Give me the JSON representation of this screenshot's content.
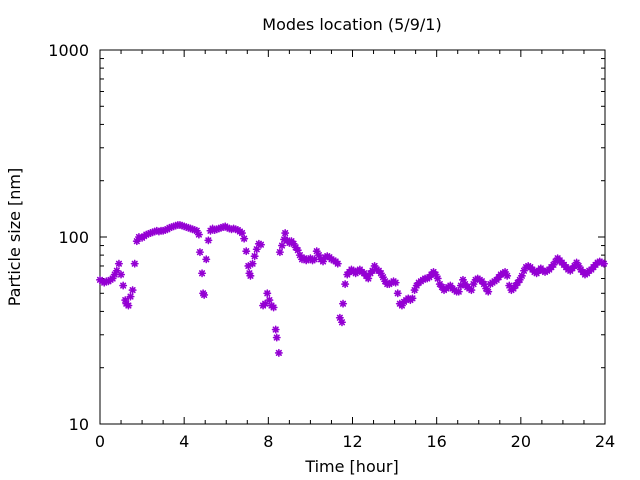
{
  "chart_data": {
    "type": "scatter",
    "title": "Modes location (5/9/1)",
    "xlabel": "Time [hour]",
    "ylabel": "Particle size [nm]",
    "xlim": [
      0,
      24
    ],
    "ylim": [
      10,
      1000
    ],
    "yscale": "log",
    "xticks": [
      0,
      4,
      8,
      12,
      16,
      20,
      24
    ],
    "xtick_labels": [
      "0",
      "4",
      "8",
      "12",
      "16",
      "20",
      "24"
    ],
    "yticks": [
      10,
      100,
      1000
    ],
    "ytick_labels": [
      "10",
      "100",
      "1000"
    ],
    "grid": false,
    "legend": "none",
    "marker": "asterisk",
    "color": "#9400d3",
    "series": [
      {
        "points": [
          [
            0.0,
            59
          ],
          [
            0.1,
            58
          ],
          [
            0.2,
            57
          ],
          [
            0.3,
            58
          ],
          [
            0.4,
            58
          ],
          [
            0.5,
            59
          ],
          [
            0.6,
            60
          ],
          [
            0.7,
            63
          ],
          [
            0.8,
            66
          ],
          [
            0.9,
            72
          ],
          [
            1.0,
            63
          ],
          [
            1.1,
            55
          ],
          [
            1.2,
            46
          ],
          [
            1.25,
            44
          ],
          [
            1.35,
            43
          ],
          [
            1.45,
            48
          ],
          [
            1.55,
            52
          ],
          [
            1.65,
            72
          ],
          [
            1.75,
            95
          ],
          [
            1.85,
            100
          ],
          [
            2.0,
            99
          ],
          [
            2.1,
            101
          ],
          [
            2.2,
            103
          ],
          [
            2.3,
            104
          ],
          [
            2.4,
            105
          ],
          [
            2.5,
            106
          ],
          [
            2.6,
            107
          ],
          [
            2.7,
            108
          ],
          [
            2.8,
            107
          ],
          [
            2.9,
            108
          ],
          [
            3.0,
            108
          ],
          [
            3.1,
            109
          ],
          [
            3.2,
            110
          ],
          [
            3.3,
            112
          ],
          [
            3.4,
            113
          ],
          [
            3.5,
            114
          ],
          [
            3.6,
            115
          ],
          [
            3.7,
            116
          ],
          [
            3.8,
            116
          ],
          [
            3.9,
            115
          ],
          [
            4.0,
            114
          ],
          [
            4.1,
            113
          ],
          [
            4.2,
            112
          ],
          [
            4.3,
            111
          ],
          [
            4.4,
            110
          ],
          [
            4.5,
            109
          ],
          [
            4.6,
            108
          ],
          [
            4.7,
            103
          ],
          [
            4.75,
            83
          ],
          [
            4.85,
            64
          ],
          [
            4.9,
            50
          ],
          [
            4.95,
            49
          ],
          [
            5.05,
            76
          ],
          [
            5.15,
            96
          ],
          [
            5.25,
            108
          ],
          [
            5.35,
            111
          ],
          [
            5.45,
            109
          ],
          [
            5.55,
            110
          ],
          [
            5.65,
            111
          ],
          [
            5.75,
            112
          ],
          [
            5.85,
            113
          ],
          [
            5.95,
            114
          ],
          [
            6.05,
            112
          ],
          [
            6.15,
            111
          ],
          [
            6.25,
            110
          ],
          [
            6.35,
            111
          ],
          [
            6.45,
            110
          ],
          [
            6.55,
            109
          ],
          [
            6.65,
            107
          ],
          [
            6.75,
            105
          ],
          [
            6.85,
            98
          ],
          [
            6.95,
            84
          ],
          [
            7.05,
            70
          ],
          [
            7.1,
            64
          ],
          [
            7.15,
            62
          ],
          [
            7.25,
            72
          ],
          [
            7.35,
            79
          ],
          [
            7.45,
            86
          ],
          [
            7.55,
            92
          ],
          [
            7.65,
            91
          ],
          [
            7.75,
            43
          ],
          [
            7.85,
            44
          ],
          [
            7.95,
            50
          ],
          [
            8.05,
            46
          ],
          [
            8.15,
            43
          ],
          [
            8.25,
            42
          ],
          [
            8.35,
            32
          ],
          [
            8.4,
            29
          ],
          [
            8.5,
            24
          ],
          [
            8.55,
            83
          ],
          [
            8.65,
            90
          ],
          [
            8.75,
            97
          ],
          [
            8.8,
            105
          ],
          [
            8.9,
            96
          ],
          [
            9.0,
            93
          ],
          [
            9.1,
            95
          ],
          [
            9.2,
            92
          ],
          [
            9.3,
            88
          ],
          [
            9.4,
            85
          ],
          [
            9.5,
            80
          ],
          [
            9.6,
            76
          ],
          [
            9.7,
            77
          ],
          [
            9.8,
            75
          ],
          [
            9.9,
            76
          ],
          [
            10.0,
            77
          ],
          [
            10.1,
            75
          ],
          [
            10.2,
            76
          ],
          [
            10.3,
            84
          ],
          [
            10.4,
            80
          ],
          [
            10.5,
            76
          ],
          [
            10.6,
            74
          ],
          [
            10.7,
            78
          ],
          [
            10.8,
            79
          ],
          [
            10.9,
            78
          ],
          [
            11.0,
            76
          ],
          [
            11.1,
            75
          ],
          [
            11.2,
            74
          ],
          [
            11.3,
            72
          ],
          [
            11.4,
            37
          ],
          [
            11.5,
            35
          ],
          [
            11.55,
            44
          ],
          [
            11.65,
            56
          ],
          [
            11.75,
            63
          ],
          [
            11.85,
            65
          ],
          [
            11.95,
            67
          ],
          [
            12.05,
            66
          ],
          [
            12.15,
            64
          ],
          [
            12.25,
            66
          ],
          [
            12.35,
            67
          ],
          [
            12.45,
            65
          ],
          [
            12.55,
            64
          ],
          [
            12.65,
            62
          ],
          [
            12.75,
            60
          ],
          [
            12.85,
            64
          ],
          [
            12.95,
            66
          ],
          [
            13.05,
            70
          ],
          [
            13.15,
            67
          ],
          [
            13.25,
            66
          ],
          [
            13.35,
            64
          ],
          [
            13.45,
            61
          ],
          [
            13.55,
            58
          ],
          [
            13.65,
            56
          ],
          [
            13.75,
            56
          ],
          [
            13.85,
            57
          ],
          [
            13.95,
            58
          ],
          [
            14.05,
            57
          ],
          [
            14.15,
            50
          ],
          [
            14.25,
            44
          ],
          [
            14.35,
            43
          ],
          [
            14.45,
            45
          ],
          [
            14.55,
            46
          ],
          [
            14.65,
            47
          ],
          [
            14.75,
            46
          ],
          [
            14.85,
            47
          ],
          [
            14.95,
            52
          ],
          [
            15.05,
            55
          ],
          [
            15.15,
            57
          ],
          [
            15.25,
            58
          ],
          [
            15.35,
            59
          ],
          [
            15.45,
            60
          ],
          [
            15.55,
            60
          ],
          [
            15.65,
            61
          ],
          [
            15.75,
            63
          ],
          [
            15.85,
            65
          ],
          [
            15.95,
            63
          ],
          [
            16.05,
            60
          ],
          [
            16.15,
            56
          ],
          [
            16.25,
            54
          ],
          [
            16.35,
            52
          ],
          [
            16.45,
            53
          ],
          [
            16.55,
            54
          ],
          [
            16.65,
            55
          ],
          [
            16.75,
            53
          ],
          [
            16.85,
            52
          ],
          [
            16.95,
            51
          ],
          [
            17.05,
            51
          ],
          [
            17.15,
            55
          ],
          [
            17.25,
            59
          ],
          [
            17.35,
            56
          ],
          [
            17.45,
            54
          ],
          [
            17.55,
            53
          ],
          [
            17.65,
            52
          ],
          [
            17.75,
            56
          ],
          [
            17.85,
            59
          ],
          [
            17.95,
            60
          ],
          [
            18.05,
            59
          ],
          [
            18.15,
            58
          ],
          [
            18.25,
            56
          ],
          [
            18.35,
            53
          ],
          [
            18.45,
            51
          ],
          [
            18.55,
            56
          ],
          [
            18.65,
            57
          ],
          [
            18.75,
            58
          ],
          [
            18.85,
            59
          ],
          [
            18.95,
            61
          ],
          [
            19.05,
            63
          ],
          [
            19.15,
            64
          ],
          [
            19.25,
            65
          ],
          [
            19.35,
            62
          ],
          [
            19.45,
            55
          ],
          [
            19.55,
            52
          ],
          [
            19.65,
            53
          ],
          [
            19.75,
            55
          ],
          [
            19.85,
            57
          ],
          [
            19.95,
            59
          ],
          [
            20.05,
            62
          ],
          [
            20.15,
            66
          ],
          [
            20.25,
            69
          ],
          [
            20.35,
            70
          ],
          [
            20.45,
            69
          ],
          [
            20.55,
            67
          ],
          [
            20.65,
            65
          ],
          [
            20.75,
            64
          ],
          [
            20.85,
            66
          ],
          [
            20.95,
            68
          ],
          [
            21.05,
            66
          ],
          [
            21.15,
            65
          ],
          [
            21.25,
            66
          ],
          [
            21.35,
            67
          ],
          [
            21.45,
            69
          ],
          [
            21.55,
            71
          ],
          [
            21.65,
            74
          ],
          [
            21.75,
            77
          ],
          [
            21.85,
            75
          ],
          [
            21.95,
            73
          ],
          [
            22.05,
            71
          ],
          [
            22.15,
            69
          ],
          [
            22.25,
            67
          ],
          [
            22.35,
            66
          ],
          [
            22.45,
            68
          ],
          [
            22.55,
            70
          ],
          [
            22.65,
            73
          ],
          [
            22.75,
            70
          ],
          [
            22.85,
            67
          ],
          [
            22.95,
            65
          ],
          [
            23.05,
            63
          ],
          [
            23.15,
            64
          ],
          [
            23.25,
            66
          ],
          [
            23.35,
            67
          ],
          [
            23.45,
            69
          ],
          [
            23.55,
            71
          ],
          [
            23.65,
            73
          ],
          [
            23.75,
            74
          ],
          [
            23.85,
            73
          ],
          [
            23.95,
            72
          ]
        ]
      }
    ]
  }
}
